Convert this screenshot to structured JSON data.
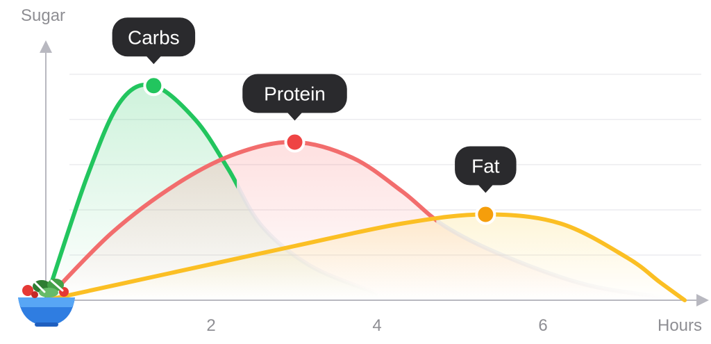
{
  "chart_data": {
    "type": "line",
    "ylabel": "Sugar",
    "xlabel": "Hours",
    "x_ticks": [
      2,
      4,
      6
    ],
    "xlim": [
      0,
      7.8
    ],
    "ylim": [
      0,
      1
    ],
    "grid": true,
    "series": [
      {
        "name": "Carbs",
        "color": "#22c55e",
        "fill": "#22c55e",
        "peak": {
          "x": 1.3,
          "y": 0.95
        },
        "points": [
          [
            0,
            0
          ],
          [
            0.5,
            0.55
          ],
          [
            0.9,
            0.88
          ],
          [
            1.3,
            0.95
          ],
          [
            1.8,
            0.8
          ],
          [
            2.2,
            0.58
          ],
          [
            2.6,
            0.33
          ],
          [
            3.2,
            0.15
          ],
          [
            4.0,
            0.03
          ]
        ],
        "visible_until": 2.3
      },
      {
        "name": "Protein",
        "color": "#f26d6d",
        "fill": "#f87171",
        "marker": "#ef4444",
        "peak": {
          "x": 3.0,
          "y": 0.7
        },
        "points": [
          [
            0,
            0
          ],
          [
            0.8,
            0.3
          ],
          [
            1.6,
            0.52
          ],
          [
            2.3,
            0.65
          ],
          [
            3.0,
            0.7
          ],
          [
            3.7,
            0.63
          ],
          [
            4.3,
            0.48
          ],
          [
            4.8,
            0.33
          ],
          [
            5.5,
            0.2
          ],
          [
            6.5,
            0.07
          ],
          [
            7.5,
            0.01
          ]
        ],
        "visible_until": 4.7
      },
      {
        "name": "Fat",
        "color": "#fbbf24",
        "fill": "#fcd34d",
        "marker": "#f59e0b",
        "peak": {
          "x": 5.3,
          "y": 0.38
        },
        "points": [
          [
            0,
            0
          ],
          [
            1.5,
            0.12
          ],
          [
            3.0,
            0.24
          ],
          [
            4.3,
            0.34
          ],
          [
            5.3,
            0.38
          ],
          [
            6.2,
            0.34
          ],
          [
            7.0,
            0.19
          ],
          [
            7.4,
            0.08
          ],
          [
            7.7,
            0.0
          ]
        ],
        "visible_until": 7.8
      }
    ],
    "origin_icon": "salad-bowl-icon"
  }
}
